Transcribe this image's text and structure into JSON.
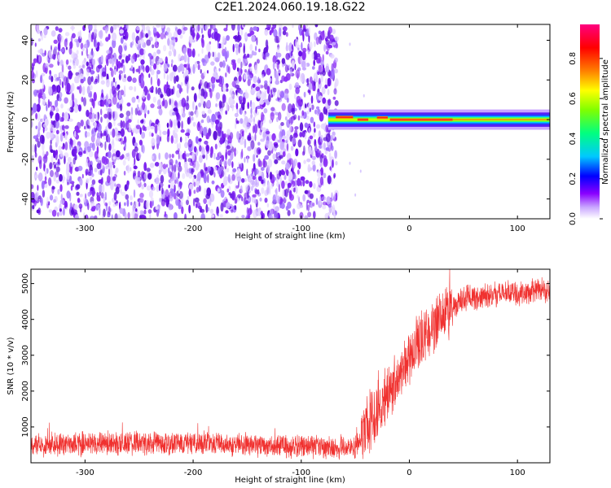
{
  "title": "C2E1.2024.060.19.18.G22",
  "chart_data": [
    {
      "type": "heatmap",
      "xlabel": "Height of straight line (km)",
      "ylabel": "Frequency (Hz)",
      "xlim": [
        -350,
        130
      ],
      "ylim": [
        -50,
        48
      ],
      "xticks": [
        -300,
        -200,
        -100,
        0,
        100
      ],
      "yticks": [
        -40,
        -20,
        0,
        20,
        40
      ],
      "noise_region_x": [
        -350,
        -67
      ],
      "signal_band": {
        "x": [
          -75,
          130
        ],
        "freq_center": 0,
        "freq_halfwidth": 3
      },
      "colorbar": {
        "label": "Normalized spectral amplitude",
        "range": [
          0,
          0.97
        ],
        "ticks": [
          0.0,
          0.2,
          0.4,
          0.6,
          0.8
        ],
        "tick_labels": [
          "0.0",
          "0.2",
          "0.4",
          "0.6",
          "0.8"
        ],
        "colors": [
          "#ffffff",
          "#8a00ff",
          "#0000ff",
          "#00c8ff",
          "#00ff80",
          "#80ff00",
          "#ffff00",
          "#ff8000",
          "#ff0000",
          "#ff0080"
        ]
      }
    },
    {
      "type": "line",
      "xlabel": "Height of straight line (km)",
      "ylabel": "SNR (10 * v/v)",
      "xlim": [
        -350,
        130
      ],
      "ylim": [
        0,
        5400
      ],
      "xticks": [
        -300,
        -200,
        -100,
        0,
        100
      ],
      "yticks": [
        1000,
        2000,
        3000,
        4000,
        5000
      ],
      "series": [
        {
          "color": "#f0312f",
          "profile": [
            [
              -350,
              520
            ],
            [
              -200,
              560
            ],
            [
              -100,
              450
            ],
            [
              -50,
              420
            ],
            [
              -42,
              850
            ],
            [
              -30,
              1450
            ],
            [
              -15,
              2200
            ],
            [
              -5,
              2800
            ],
            [
              10,
              3400
            ],
            [
              30,
              4100
            ],
            [
              50,
              4550
            ],
            [
              80,
              4700
            ],
            [
              130,
              4800
            ]
          ]
        }
      ]
    }
  ]
}
